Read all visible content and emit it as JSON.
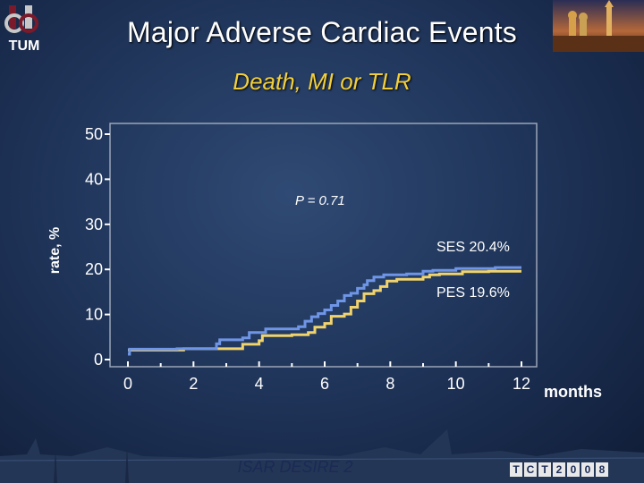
{
  "slide": {
    "title": "Major Adverse Cardiac Events",
    "subtitle": "Death, MI or TLR",
    "footer": "ISAR DESIRE 2",
    "xunit": "months",
    "logo_left": "TUM",
    "logo_right": [
      "T",
      "C",
      "T",
      "2",
      "0",
      "0",
      "8"
    ]
  },
  "colors": {
    "ses": "#6f95e6",
    "pes": "#f0d36c",
    "axis": "#ffffff",
    "frame": "#9aa5b8",
    "title": "#ffffff",
    "subtitle": "#f2cf3a"
  },
  "chart_data": {
    "type": "line",
    "step": true,
    "title": "Death, MI or TLR",
    "xlabel": "months",
    "ylabel": "rate, %",
    "xlim": [
      0,
      12
    ],
    "ylim": [
      0,
      50
    ],
    "xticks": [
      0,
      2,
      4,
      6,
      8,
      10,
      12
    ],
    "yticks": [
      0,
      10,
      20,
      30,
      40,
      50
    ],
    "annotation": "P = 0.71",
    "series": [
      {
        "name": "SES",
        "label": "SES 20.4%",
        "color": "#6f95e6",
        "points": [
          [
            0,
            1.2
          ],
          [
            0.05,
            2.3
          ],
          [
            1.5,
            2.4
          ],
          [
            2.7,
            3.5
          ],
          [
            2.8,
            4.4
          ],
          [
            3.5,
            4.8
          ],
          [
            3.7,
            6
          ],
          [
            4.2,
            6.8
          ],
          [
            5.2,
            7.3
          ],
          [
            5.4,
            8.5
          ],
          [
            5.6,
            9.5
          ],
          [
            5.8,
            10.2
          ],
          [
            6.0,
            11.0
          ],
          [
            6.2,
            12.0
          ],
          [
            6.4,
            13.0
          ],
          [
            6.6,
            14.2
          ],
          [
            6.8,
            14.7
          ],
          [
            7.0,
            15.8
          ],
          [
            7.2,
            16.6
          ],
          [
            7.3,
            17.5
          ],
          [
            7.5,
            18.3
          ],
          [
            7.8,
            18.8
          ],
          [
            8.5,
            19.0
          ],
          [
            9.0,
            19.6
          ],
          [
            9.3,
            19.8
          ],
          [
            10.0,
            20.2
          ],
          [
            11.2,
            20.4
          ],
          [
            12,
            20.4
          ]
        ]
      },
      {
        "name": "PES",
        "label": "PES 19.6%",
        "color": "#f0d36c",
        "points": [
          [
            0,
            2.1
          ],
          [
            1.7,
            2.4
          ],
          [
            3.5,
            3.4
          ],
          [
            4.0,
            4.2
          ],
          [
            4.1,
            5.3
          ],
          [
            5.0,
            5.5
          ],
          [
            5.5,
            6.0
          ],
          [
            5.7,
            7.2
          ],
          [
            6.0,
            8.0
          ],
          [
            6.2,
            9.6
          ],
          [
            6.6,
            10.1
          ],
          [
            6.8,
            11.6
          ],
          [
            7.0,
            13.0
          ],
          [
            7.2,
            14.6
          ],
          [
            7.5,
            15.3
          ],
          [
            7.7,
            16.2
          ],
          [
            7.9,
            17.4
          ],
          [
            8.2,
            17.8
          ],
          [
            9.0,
            18.3
          ],
          [
            9.2,
            18.8
          ],
          [
            9.5,
            19.0
          ],
          [
            10.2,
            19.5
          ],
          [
            11.0,
            19.6
          ],
          [
            12,
            19.6
          ]
        ]
      }
    ]
  }
}
